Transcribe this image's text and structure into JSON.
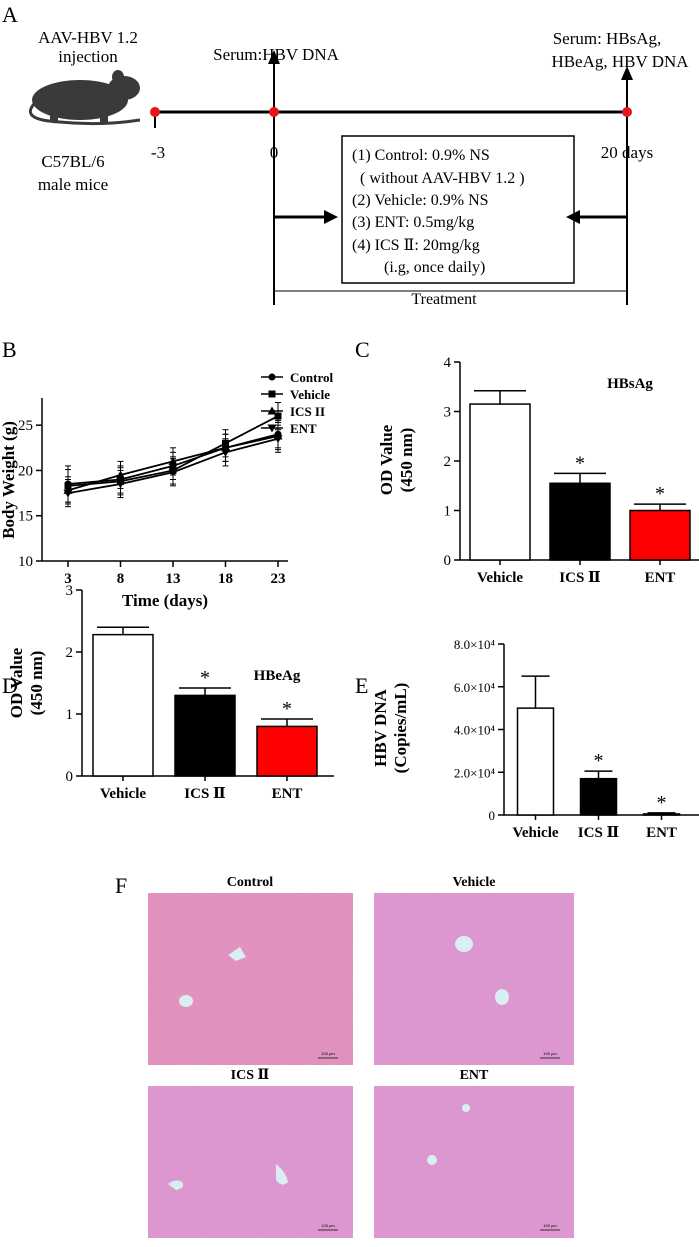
{
  "panel_labels": {
    "a": "A",
    "b": "B",
    "c": "C",
    "d": "D",
    "e": "E",
    "f": "F"
  },
  "timeline": {
    "injection_line1": "AAV-HBV 1.2",
    "injection_line2": "injection",
    "mouse_line1": "C57BL/6",
    "mouse_line2": "male mice",
    "serum_start": "Serum:HBV DNA",
    "serum_end_line1": "Serum: HBsAg,",
    "serum_end_line2": "HBeAg, HBV DNA",
    "day_minus3": "-3",
    "day_0": "0",
    "day_20": "20 days",
    "treatment_label": "Treatment",
    "groups": [
      "(1) Control: 0.9% NS",
      "( without AAV-HBV 1.2 )",
      "(2) Vehicle: 0.9% NS",
      "(3) ENT: 0.5mg/kg",
      "(4) ICS Ⅱ: 20mg/kg",
      "(i.g, once daily)"
    ],
    "colors": {
      "dot": "#e8141c"
    }
  },
  "histology": {
    "titles": [
      "Control",
      "Vehicle",
      "ICS Ⅱ",
      "ENT"
    ],
    "scale_label": "100 μm",
    "colors": {
      "tissue": "#e79ac1",
      "tissue_alt": "#e2a0d6",
      "vessel": "#d9eef0"
    }
  },
  "chart_data": [
    {
      "panel": "B",
      "type": "line",
      "x": [
        3,
        8,
        13,
        18,
        23
      ],
      "series": [
        {
          "name": "Control",
          "marker": "circle",
          "values": [
            18.5,
            19.0,
            20.5,
            22.5,
            24.0
          ],
          "err": [
            2.0,
            1.5,
            1.5,
            1.5,
            1.5
          ]
        },
        {
          "name": "Vehicle",
          "marker": "square",
          "values": [
            18.3,
            18.8,
            20.0,
            23.0,
            26.0
          ],
          "err": [
            1.8,
            1.5,
            1.5,
            1.5,
            1.5
          ]
        },
        {
          "name": "ICS II",
          "marker": "triangle-up",
          "values": [
            17.8,
            19.5,
            21.0,
            22.5,
            23.8
          ],
          "err": [
            1.5,
            1.5,
            1.5,
            1.5,
            1.5
          ]
        },
        {
          "name": "ENT",
          "marker": "triangle-down",
          "values": [
            17.5,
            18.5,
            19.8,
            22.0,
            23.5
          ],
          "err": [
            1.5,
            1.5,
            1.5,
            1.5,
            1.5
          ]
        }
      ],
      "xlabel": "Time (days)",
      "ylabel": "Body Weight (g)",
      "xticks": [
        3,
        8,
        13,
        18,
        23
      ],
      "yticks": [
        10,
        15,
        20,
        25
      ],
      "ylim": [
        10,
        28
      ]
    },
    {
      "panel": "C",
      "type": "bar",
      "title": "HBsAg",
      "categories": [
        "Vehicle",
        "ICS Ⅱ",
        "ENT"
      ],
      "values": [
        3.15,
        1.55,
        1.0
      ],
      "err": [
        0.27,
        0.2,
        0.13
      ],
      "colors": [
        "#ffffff",
        "#000000",
        "#ff0000"
      ],
      "sig": [
        "",
        "*",
        "*"
      ],
      "ylabel_line1": "OD Value",
      "ylabel_line2": "(450 nm)",
      "yticks": [
        "0",
        "1",
        "2",
        "3",
        "4"
      ],
      "ylim": [
        0,
        4
      ]
    },
    {
      "panel": "D",
      "type": "bar",
      "title": "HBeAg",
      "categories": [
        "Vehicle",
        "ICS Ⅱ",
        "ENT"
      ],
      "values": [
        2.28,
        1.3,
        0.8
      ],
      "err": [
        0.12,
        0.12,
        0.12
      ],
      "colors": [
        "#ffffff",
        "#000000",
        "#ff0000"
      ],
      "sig": [
        "",
        "*",
        "*"
      ],
      "ylabel_line1": "OD Value",
      "ylabel_line2": "(450 nm)",
      "yticks": [
        "0",
        "1",
        "2",
        "3"
      ],
      "ylim": [
        0,
        3
      ]
    },
    {
      "panel": "E",
      "type": "bar",
      "categories": [
        "Vehicle",
        "ICS Ⅱ",
        "ENT"
      ],
      "values": [
        50000,
        17000,
        500
      ],
      "err": [
        15000,
        3500,
        500
      ],
      "colors": [
        "#ffffff",
        "#000000",
        "#ff0000"
      ],
      "sig": [
        "",
        "*",
        "*"
      ],
      "ylabel_line1": "HBV DNA",
      "ylabel_line2": "(Copies/mL)",
      "yticks": [
        "0",
        "2.0×10⁴",
        "4.0×10⁴",
        "6.0×10⁴",
        "8.0×10⁴"
      ],
      "ylim": [
        0,
        80000
      ]
    }
  ]
}
